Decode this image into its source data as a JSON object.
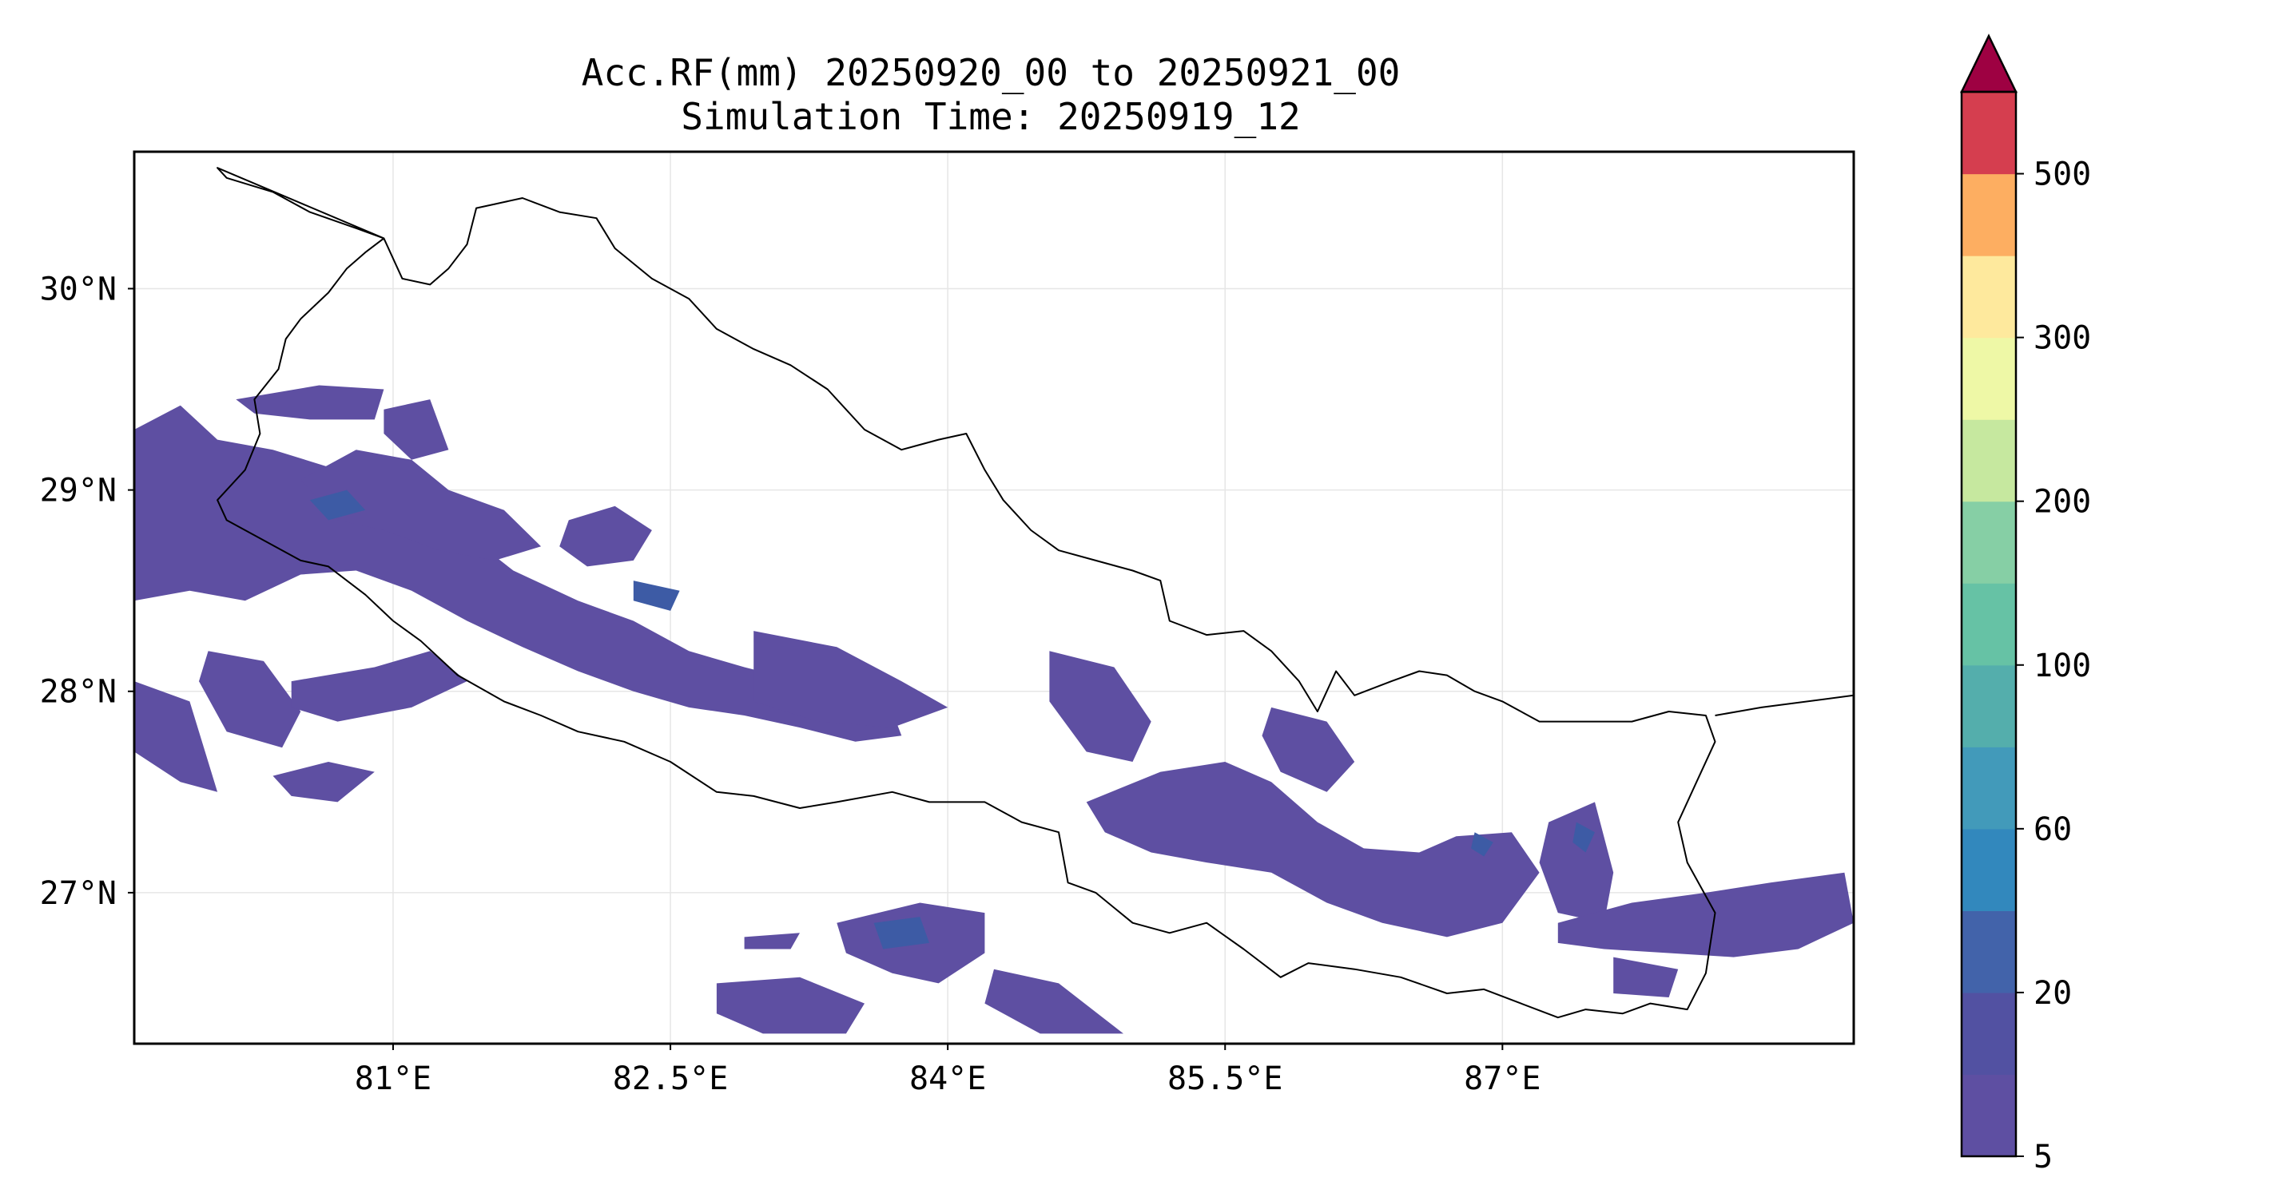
{
  "title": {
    "line1": "Acc.RF(mm) 20250920_00 to 20250921_00",
    "line2": "Simulation Time: 20250919_12"
  },
  "map": {
    "lon_range": [
      79.6,
      88.9
    ],
    "lat_range": [
      26.25,
      30.68
    ],
    "x_ticks": [
      {
        "value": 81.0,
        "label": "81°E"
      },
      {
        "value": 82.5,
        "label": "82.5°E"
      },
      {
        "value": 84.0,
        "label": "84°E"
      },
      {
        "value": 85.5,
        "label": "85.5°E"
      },
      {
        "value": 87.0,
        "label": "87°E"
      }
    ],
    "y_ticks": [
      {
        "value": 27.0,
        "label": "27°N"
      },
      {
        "value": 28.0,
        "label": "28°N"
      },
      {
        "value": 29.0,
        "label": "29°N"
      },
      {
        "value": 30.0,
        "label": "30°N"
      }
    ],
    "gridlines": true,
    "rain_fill_color": "#5e4fa2",
    "rain_dark_color": "#3d5ba5",
    "border_color": "#000000",
    "nepal_border": [
      [
        80.05,
        30.6
      ],
      [
        80.1,
        30.55
      ],
      [
        80.35,
        30.48
      ],
      [
        80.55,
        30.38
      ],
      [
        80.8,
        30.3
      ],
      [
        80.95,
        30.25
      ],
      [
        81.05,
        30.05
      ],
      [
        81.2,
        30.02
      ],
      [
        81.3,
        30.1
      ],
      [
        81.4,
        30.22
      ],
      [
        81.45,
        30.4
      ],
      [
        81.55,
        30.42
      ],
      [
        81.7,
        30.45
      ],
      [
        81.9,
        30.38
      ],
      [
        82.1,
        30.35
      ],
      [
        82.2,
        30.2
      ],
      [
        82.4,
        30.05
      ],
      [
        82.6,
        29.95
      ],
      [
        82.75,
        29.8
      ],
      [
        82.95,
        29.7
      ],
      [
        83.15,
        29.62
      ],
      [
        83.35,
        29.5
      ],
      [
        83.55,
        29.3
      ],
      [
        83.75,
        29.2
      ],
      [
        83.95,
        29.25
      ],
      [
        84.1,
        29.28
      ],
      [
        84.2,
        29.1
      ],
      [
        84.3,
        28.95
      ],
      [
        84.45,
        28.8
      ],
      [
        84.6,
        28.7
      ],
      [
        84.8,
        28.65
      ],
      [
        85.0,
        28.6
      ],
      [
        85.15,
        28.55
      ],
      [
        85.2,
        28.35
      ],
      [
        85.4,
        28.28
      ],
      [
        85.6,
        28.3
      ],
      [
        85.75,
        28.2
      ],
      [
        85.9,
        28.05
      ],
      [
        86.0,
        27.9
      ],
      [
        86.1,
        28.1
      ],
      [
        86.2,
        27.98
      ],
      [
        86.4,
        28.05
      ],
      [
        86.55,
        28.1
      ],
      [
        86.7,
        28.08
      ],
      [
        86.85,
        28.0
      ],
      [
        87.0,
        27.95
      ],
      [
        87.2,
        27.85
      ],
      [
        87.5,
        27.85
      ],
      [
        87.7,
        27.85
      ],
      [
        87.9,
        27.9
      ],
      [
        88.1,
        27.88
      ],
      [
        88.15,
        27.75
      ],
      [
        88.05,
        27.55
      ],
      [
        87.95,
        27.35
      ],
      [
        88.0,
        27.15
      ],
      [
        88.15,
        26.9
      ],
      [
        88.1,
        26.6
      ],
      [
        88.0,
        26.42
      ],
      [
        87.8,
        26.45
      ],
      [
        87.65,
        26.4
      ],
      [
        87.45,
        26.42
      ],
      [
        87.3,
        26.38
      ],
      [
        87.1,
        26.45
      ],
      [
        86.9,
        26.52
      ],
      [
        86.7,
        26.5
      ],
      [
        86.45,
        26.58
      ],
      [
        86.2,
        26.62
      ],
      [
        85.95,
        26.65
      ],
      [
        85.8,
        26.58
      ],
      [
        85.6,
        26.72
      ],
      [
        85.4,
        26.85
      ],
      [
        85.2,
        26.8
      ],
      [
        85.0,
        26.85
      ],
      [
        84.8,
        27.0
      ],
      [
        84.65,
        27.05
      ],
      [
        84.6,
        27.3
      ],
      [
        84.4,
        27.35
      ],
      [
        84.2,
        27.45
      ],
      [
        84.05,
        27.45
      ],
      [
        83.9,
        27.45
      ],
      [
        83.7,
        27.5
      ],
      [
        83.4,
        27.45
      ],
      [
        83.2,
        27.42
      ],
      [
        82.95,
        27.48
      ],
      [
        82.75,
        27.5
      ],
      [
        82.5,
        27.65
      ],
      [
        82.25,
        27.75
      ],
      [
        82.0,
        27.8
      ],
      [
        81.8,
        27.88
      ],
      [
        81.6,
        27.95
      ],
      [
        81.35,
        28.08
      ],
      [
        81.15,
        28.25
      ],
      [
        81.0,
        28.35
      ],
      [
        80.85,
        28.48
      ],
      [
        80.65,
        28.62
      ],
      [
        80.5,
        28.65
      ],
      [
        80.3,
        28.75
      ],
      [
        80.1,
        28.85
      ],
      [
        80.05,
        28.95
      ],
      [
        80.2,
        29.1
      ],
      [
        80.28,
        29.28
      ],
      [
        80.25,
        29.45
      ],
      [
        80.38,
        29.6
      ],
      [
        80.42,
        29.75
      ],
      [
        80.5,
        29.85
      ],
      [
        80.65,
        29.98
      ],
      [
        80.75,
        30.1
      ],
      [
        80.85,
        30.18
      ],
      [
        80.95,
        30.25
      ]
    ],
    "india_border_east": [
      [
        88.15,
        27.88
      ],
      [
        88.4,
        27.92
      ],
      [
        88.9,
        27.98
      ]
    ],
    "rain_areas": [
      [
        [
          79.6,
          29.3
        ],
        [
          79.85,
          29.42
        ],
        [
          80.05,
          29.25
        ],
        [
          80.35,
          29.2
        ],
        [
          80.7,
          29.1
        ],
        [
          81.05,
          28.95
        ],
        [
          81.4,
          28.78
        ],
        [
          81.65,
          28.6
        ],
        [
          82.0,
          28.45
        ],
        [
          82.3,
          28.35
        ],
        [
          82.6,
          28.2
        ],
        [
          82.9,
          28.12
        ],
        [
          83.2,
          28.05
        ],
        [
          83.45,
          27.95
        ],
        [
          83.7,
          27.9
        ],
        [
          83.75,
          27.78
        ],
        [
          83.5,
          27.75
        ],
        [
          83.2,
          27.82
        ],
        [
          82.9,
          27.88
        ],
        [
          82.6,
          27.92
        ],
        [
          82.3,
          28.0
        ],
        [
          82.0,
          28.1
        ],
        [
          81.7,
          28.22
        ],
        [
          81.4,
          28.35
        ],
        [
          81.1,
          28.5
        ],
        [
          80.8,
          28.6
        ],
        [
          80.5,
          28.58
        ],
        [
          80.2,
          28.45
        ],
        [
          79.9,
          28.5
        ],
        [
          79.6,
          28.45
        ]
      ],
      [
        [
          80.5,
          29.05
        ],
        [
          80.8,
          29.2
        ],
        [
          81.1,
          29.15
        ],
        [
          81.3,
          29.0
        ],
        [
          81.6,
          28.9
        ],
        [
          81.8,
          28.72
        ],
        [
          81.55,
          28.65
        ],
        [
          81.25,
          28.7
        ],
        [
          80.95,
          28.8
        ],
        [
          80.7,
          28.85
        ]
      ],
      [
        [
          81.95,
          28.85
        ],
        [
          82.2,
          28.92
        ],
        [
          82.4,
          28.8
        ],
        [
          82.3,
          28.65
        ],
        [
          82.05,
          28.62
        ],
        [
          81.9,
          28.72
        ]
      ],
      [
        [
          80.15,
          29.45
        ],
        [
          80.6,
          29.52
        ],
        [
          80.95,
          29.5
        ],
        [
          80.9,
          29.35
        ],
        [
          80.55,
          29.35
        ],
        [
          80.25,
          29.38
        ]
      ],
      [
        [
          80.95,
          29.4
        ],
        [
          81.2,
          29.45
        ],
        [
          81.3,
          29.2
        ],
        [
          81.1,
          29.15
        ],
        [
          80.95,
          29.28
        ]
      ],
      [
        [
          80.0,
          28.2
        ],
        [
          80.3,
          28.15
        ],
        [
          80.5,
          27.9
        ],
        [
          80.4,
          27.72
        ],
        [
          80.1,
          27.8
        ],
        [
          79.95,
          28.05
        ]
      ],
      [
        [
          79.6,
          28.05
        ],
        [
          79.9,
          27.95
        ],
        [
          80.05,
          27.5
        ],
        [
          79.85,
          27.55
        ],
        [
          79.6,
          27.7
        ]
      ],
      [
        [
          80.45,
          28.05
        ],
        [
          80.9,
          28.12
        ],
        [
          81.2,
          28.2
        ],
        [
          81.4,
          28.05
        ],
        [
          81.1,
          27.92
        ],
        [
          80.7,
          27.85
        ],
        [
          80.45,
          27.92
        ]
      ],
      [
        [
          80.35,
          27.58
        ],
        [
          80.65,
          27.65
        ],
        [
          80.9,
          27.6
        ],
        [
          80.7,
          27.45
        ],
        [
          80.45,
          27.48
        ]
      ],
      [
        [
          82.95,
          28.3
        ],
        [
          83.4,
          28.22
        ],
        [
          83.75,
          28.05
        ],
        [
          84.0,
          27.92
        ],
        [
          83.7,
          27.82
        ],
        [
          83.3,
          27.85
        ],
        [
          82.95,
          27.95
        ]
      ],
      [
        [
          84.55,
          28.2
        ],
        [
          84.9,
          28.12
        ],
        [
          85.1,
          27.85
        ],
        [
          85.0,
          27.65
        ],
        [
          84.75,
          27.7
        ],
        [
          84.55,
          27.95
        ]
      ],
      [
        [
          84.75,
          27.45
        ],
        [
          85.15,
          27.6
        ],
        [
          85.5,
          27.65
        ],
        [
          85.75,
          27.55
        ],
        [
          86.0,
          27.35
        ],
        [
          86.25,
          27.22
        ],
        [
          86.55,
          27.2
        ],
        [
          86.75,
          27.28
        ],
        [
          87.05,
          27.3
        ],
        [
          87.2,
          27.1
        ],
        [
          87.0,
          26.85
        ],
        [
          86.7,
          26.78
        ],
        [
          86.35,
          26.85
        ],
        [
          86.05,
          26.95
        ],
        [
          85.75,
          27.1
        ],
        [
          85.4,
          27.15
        ],
        [
          85.1,
          27.2
        ],
        [
          84.85,
          27.3
        ]
      ],
      [
        [
          85.75,
          27.92
        ],
        [
          86.05,
          27.85
        ],
        [
          86.2,
          27.65
        ],
        [
          86.05,
          27.5
        ],
        [
          85.8,
          27.6
        ],
        [
          85.7,
          27.78
        ]
      ],
      [
        [
          87.25,
          27.35
        ],
        [
          87.5,
          27.45
        ],
        [
          87.6,
          27.1
        ],
        [
          87.55,
          26.85
        ],
        [
          87.3,
          26.9
        ],
        [
          87.2,
          27.15
        ]
      ],
      [
        [
          87.3,
          26.85
        ],
        [
          87.7,
          26.95
        ],
        [
          88.1,
          27.0
        ],
        [
          88.45,
          27.05
        ],
        [
          88.85,
          27.1
        ],
        [
          88.9,
          26.85
        ],
        [
          88.6,
          26.72
        ],
        [
          88.25,
          26.68
        ],
        [
          87.9,
          26.7
        ],
        [
          87.55,
          26.72
        ],
        [
          87.3,
          26.75
        ]
      ],
      [
        [
          87.6,
          26.68
        ],
        [
          87.95,
          26.62
        ],
        [
          87.9,
          26.48
        ],
        [
          87.6,
          26.5
        ]
      ],
      [
        [
          83.4,
          26.85
        ],
        [
          83.85,
          26.95
        ],
        [
          84.2,
          26.9
        ],
        [
          84.2,
          26.7
        ],
        [
          83.95,
          26.55
        ],
        [
          83.7,
          26.6
        ],
        [
          83.45,
          26.7
        ]
      ],
      [
        [
          82.75,
          26.55
        ],
        [
          83.2,
          26.58
        ],
        [
          83.55,
          26.45
        ],
        [
          83.45,
          26.3
        ],
        [
          83.0,
          26.3
        ],
        [
          82.75,
          26.4
        ]
      ],
      [
        [
          84.25,
          26.62
        ],
        [
          84.6,
          26.55
        ],
        [
          84.95,
          26.3
        ],
        [
          84.5,
          26.3
        ],
        [
          84.2,
          26.45
        ]
      ],
      [
        [
          82.9,
          26.78
        ],
        [
          83.2,
          26.8
        ],
        [
          83.15,
          26.72
        ],
        [
          82.9,
          26.72
        ]
      ]
    ],
    "rain_cores": [
      [
        [
          80.55,
          28.95
        ],
        [
          80.75,
          29.0
        ],
        [
          80.85,
          28.9
        ],
        [
          80.65,
          28.85
        ]
      ],
      [
        [
          82.3,
          28.55
        ],
        [
          82.55,
          28.5
        ],
        [
          82.5,
          28.4
        ],
        [
          82.3,
          28.45
        ]
      ],
      [
        [
          87.4,
          27.35
        ],
        [
          87.5,
          27.3
        ],
        [
          87.45,
          27.2
        ],
        [
          87.38,
          27.25
        ]
      ],
      [
        [
          86.85,
          27.3
        ],
        [
          86.95,
          27.25
        ],
        [
          86.9,
          27.18
        ],
        [
          86.83,
          27.22
        ]
      ],
      [
        [
          83.6,
          26.85
        ],
        [
          83.85,
          26.88
        ],
        [
          83.9,
          26.75
        ],
        [
          83.65,
          26.72
        ]
      ]
    ]
  },
  "colorbar": {
    "levels": [
      5,
      10,
      20,
      40,
      60,
      80,
      100,
      150,
      200,
      250,
      300,
      400,
      500
    ],
    "tick_labels": [
      {
        "level": 5,
        "label": "5"
      },
      {
        "level": 20,
        "label": "20"
      },
      {
        "level": 60,
        "label": "60"
      },
      {
        "level": 100,
        "label": "100"
      },
      {
        "level": 200,
        "label": "200"
      },
      {
        "level": 300,
        "label": "300"
      },
      {
        "level": 500,
        "label": "500"
      }
    ],
    "colors": [
      "#5e4fa2",
      "#5251a2",
      "#4263aa",
      "#3288bd",
      "#429aba",
      "#54aeac",
      "#66c2a5",
      "#86cfa5",
      "#c6e89f",
      "#eef8a6",
      "#fee99d",
      "#fdae61",
      "#d53e4f"
    ],
    "extend_color": "#9e0142"
  }
}
